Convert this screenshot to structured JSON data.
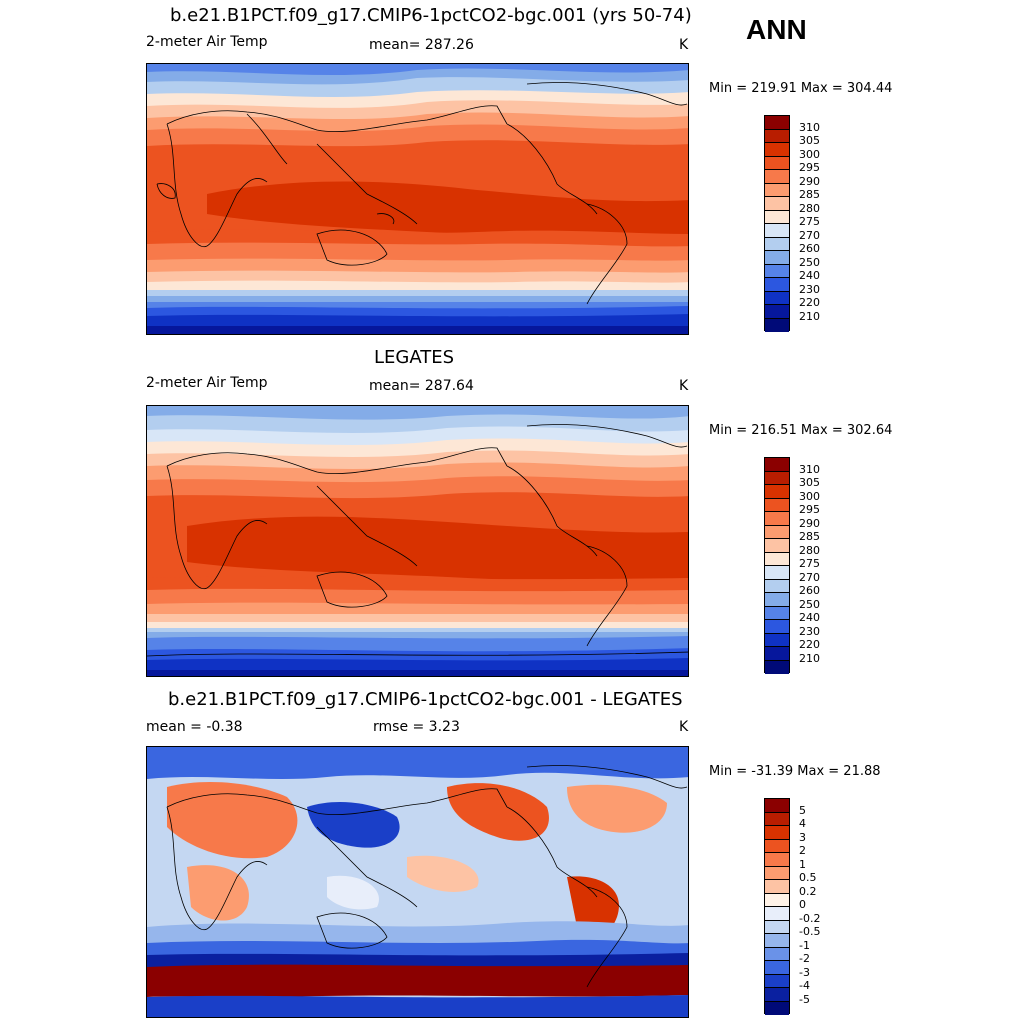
{
  "season": "ANN",
  "panels": [
    {
      "title": "b.e21.B1PCT.f09_g17.CMIP6-1pctCO2-bgc.001 (yrs 50-74)",
      "variable": "2-meter Air Temp",
      "stat_text": "mean= 287.26",
      "units": "K",
      "minmax": "Min = 219.91 Max = 304.44",
      "colorbar_labels": [
        "310",
        "305",
        "300",
        "295",
        "290",
        "285",
        "280",
        "275",
        "270",
        "260",
        "250",
        "240",
        "230",
        "220",
        "210"
      ]
    },
    {
      "title": "LEGATES",
      "variable": "2-meter Air Temp",
      "stat_text": "mean= 287.64",
      "units": "K",
      "minmax": "Min = 216.51 Max = 302.64",
      "colorbar_labels": [
        "310",
        "305",
        "300",
        "295",
        "290",
        "285",
        "280",
        "275",
        "270",
        "260",
        "250",
        "240",
        "230",
        "220",
        "210"
      ]
    },
    {
      "title": "b.e21.B1PCT.f09_g17.CMIP6-1pctCO2-bgc.001 - LEGATES",
      "mean_text": "mean =  -0.38",
      "rmse_text": "rmse =   3.23",
      "units": "K",
      "minmax": "Min = -31.39 Max =  21.88",
      "colorbar_labels": [
        "5",
        "4",
        "3",
        "2",
        "1",
        "0.5",
        "0.2",
        "0",
        "-0.2",
        "-0.5",
        "-1",
        "-2",
        "-3",
        "-4",
        "-5"
      ]
    }
  ],
  "colors": {
    "temp_scale": [
      "#8b0000",
      "#b81d00",
      "#d83200",
      "#ec5320",
      "#f7794a",
      "#fc9c70",
      "#fdc3a4",
      "#fde7d6",
      "#d8e6f7",
      "#b3ceef",
      "#84ace8",
      "#5683e8",
      "#2c57e0",
      "#0f32c4",
      "#06179c",
      "#000a78"
    ],
    "diff_scale": [
      "#8b0000",
      "#b81d00",
      "#d83200",
      "#ec5320",
      "#f7794a",
      "#fc9c70",
      "#fdc3a4",
      "#fff3e8",
      "#e8eefa",
      "#c4d7f2",
      "#96b6ec",
      "#6a92e8",
      "#3a66e0",
      "#1a3fc8",
      "#0a20a0",
      "#000a78"
    ]
  }
}
